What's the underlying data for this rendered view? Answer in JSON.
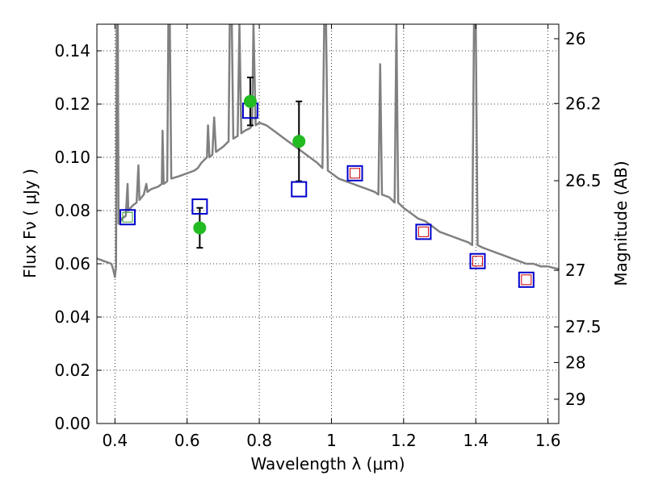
{
  "chart_data": {
    "type": "scatter",
    "xlabel": "Wavelength  λ (μm)",
    "ylabel": "Flux  Fν  ( μJy )",
    "ylabel_right": "Magnitude (AB)",
    "xlim": [
      0.35,
      1.63
    ],
    "ylim": [
      0,
      0.15
    ],
    "grid": true,
    "x_ticks": [
      {
        "value": 0.4,
        "label": "0.4"
      },
      {
        "value": 0.6,
        "label": "0.6"
      },
      {
        "value": 0.8,
        "label": "0.8"
      },
      {
        "value": 1.0,
        "label": "1"
      },
      {
        "value": 1.2,
        "label": "1.2"
      },
      {
        "value": 1.4,
        "label": "1.4"
      },
      {
        "value": 1.6,
        "label": "1.6"
      }
    ],
    "y_ticks": [
      {
        "value": 0.0,
        "label": "0.00"
      },
      {
        "value": 0.02,
        "label": "0.02"
      },
      {
        "value": 0.04,
        "label": "0.04"
      },
      {
        "value": 0.06,
        "label": "0.06"
      },
      {
        "value": 0.08,
        "label": "0.08"
      },
      {
        "value": 0.1,
        "label": "0.10"
      },
      {
        "value": 0.12,
        "label": "0.12"
      },
      {
        "value": 0.14,
        "label": "0.14"
      }
    ],
    "right_ticks": [
      {
        "value": 26.0,
        "label": "26"
      },
      {
        "value": 26.2,
        "label": "26.2"
      },
      {
        "value": 26.5,
        "label": "26.5"
      },
      {
        "value": 27.0,
        "label": "27"
      },
      {
        "value": 27.5,
        "label": "27.5"
      },
      {
        "value": 28.0,
        "label": "28"
      },
      {
        "value": 29.0,
        "label": "29"
      }
    ],
    "colors": {
      "spectrum": "#808080",
      "model_boxes": "#0000cc",
      "inner_boxes": "#cc0000",
      "inner_green": "#2ca02c",
      "observed": "#22bb22",
      "errorbar": "#000000"
    },
    "spectrum": [
      [
        0.35,
        0.062
      ],
      [
        0.37,
        0.061
      ],
      [
        0.39,
        0.06
      ],
      [
        0.395,
        0.058
      ],
      [
        0.4,
        0.055
      ],
      [
        0.403,
        0.059
      ],
      [
        0.405,
        0.15
      ],
      [
        0.408,
        0.15
      ],
      [
        0.41,
        0.075
      ],
      [
        0.42,
        0.077
      ],
      [
        0.43,
        0.078
      ],
      [
        0.435,
        0.09
      ],
      [
        0.437,
        0.08
      ],
      [
        0.45,
        0.082
      ],
      [
        0.46,
        0.083
      ],
      [
        0.465,
        0.097
      ],
      [
        0.468,
        0.084
      ],
      [
        0.48,
        0.086
      ],
      [
        0.487,
        0.09
      ],
      [
        0.49,
        0.087
      ],
      [
        0.5,
        0.088
      ],
      [
        0.52,
        0.089
      ],
      [
        0.53,
        0.09
      ],
      [
        0.532,
        0.11
      ],
      [
        0.535,
        0.09
      ],
      [
        0.545,
        0.091
      ],
      [
        0.548,
        0.15
      ],
      [
        0.552,
        0.15
      ],
      [
        0.556,
        0.092
      ],
      [
        0.58,
        0.093
      ],
      [
        0.6,
        0.094
      ],
      [
        0.62,
        0.095
      ],
      [
        0.63,
        0.096
      ],
      [
        0.64,
        0.098
      ],
      [
        0.655,
        0.1
      ],
      [
        0.658,
        0.112
      ],
      [
        0.662,
        0.1
      ],
      [
        0.67,
        0.101
      ],
      [
        0.675,
        0.115
      ],
      [
        0.68,
        0.102
      ],
      [
        0.7,
        0.104
      ],
      [
        0.715,
        0.106
      ],
      [
        0.718,
        0.15
      ],
      [
        0.724,
        0.15
      ],
      [
        0.728,
        0.107
      ],
      [
        0.74,
        0.108
      ],
      [
        0.745,
        0.15
      ],
      [
        0.75,
        0.109
      ],
      [
        0.76,
        0.11
      ],
      [
        0.775,
        0.111
      ],
      [
        0.78,
        0.112
      ],
      [
        0.784,
        0.15
      ],
      [
        0.79,
        0.112
      ],
      [
        0.8,
        0.113
      ],
      [
        0.82,
        0.112
      ],
      [
        0.84,
        0.11
      ],
      [
        0.86,
        0.108
      ],
      [
        0.88,
        0.106
      ],
      [
        0.9,
        0.104
      ],
      [
        0.92,
        0.102
      ],
      [
        0.94,
        0.1
      ],
      [
        0.96,
        0.098
      ],
      [
        0.975,
        0.096
      ],
      [
        0.98,
        0.15
      ],
      [
        0.985,
        0.15
      ],
      [
        0.99,
        0.095
      ],
      [
        1.0,
        0.094
      ],
      [
        1.02,
        0.092
      ],
      [
        1.04,
        0.091
      ],
      [
        1.06,
        0.09
      ],
      [
        1.08,
        0.089
      ],
      [
        1.1,
        0.088
      ],
      [
        1.12,
        0.087
      ],
      [
        1.13,
        0.086
      ],
      [
        1.135,
        0.135
      ],
      [
        1.14,
        0.086
      ],
      [
        1.16,
        0.085
      ],
      [
        1.175,
        0.083
      ],
      [
        1.18,
        0.15
      ],
      [
        1.185,
        0.083
      ],
      [
        1.2,
        0.081
      ],
      [
        1.22,
        0.079
      ],
      [
        1.24,
        0.077
      ],
      [
        1.26,
        0.076
      ],
      [
        1.28,
        0.074
      ],
      [
        1.3,
        0.072
      ],
      [
        1.32,
        0.071
      ],
      [
        1.34,
        0.07
      ],
      [
        1.36,
        0.069
      ],
      [
        1.38,
        0.068
      ],
      [
        1.39,
        0.067
      ],
      [
        1.395,
        0.15
      ],
      [
        1.4,
        0.15
      ],
      [
        1.405,
        0.067
      ],
      [
        1.42,
        0.066
      ],
      [
        1.44,
        0.065
      ],
      [
        1.46,
        0.064
      ],
      [
        1.48,
        0.063
      ],
      [
        1.5,
        0.062
      ],
      [
        1.52,
        0.061
      ],
      [
        1.54,
        0.06
      ],
      [
        1.56,
        0.06
      ],
      [
        1.58,
        0.059
      ],
      [
        1.6,
        0.059
      ],
      [
        1.63,
        0.058
      ]
    ],
    "model_boxes": [
      {
        "x": 0.435,
        "y": 0.0775,
        "inner": "green"
      },
      {
        "x": 0.635,
        "y": 0.0815
      },
      {
        "x": 0.775,
        "y": 0.1175
      },
      {
        "x": 0.91,
        "y": 0.088
      },
      {
        "x": 1.065,
        "y": 0.094,
        "inner": "red"
      },
      {
        "x": 1.255,
        "y": 0.072,
        "inner": "red"
      },
      {
        "x": 1.405,
        "y": 0.061,
        "inner": "red"
      },
      {
        "x": 1.54,
        "y": 0.054,
        "inner": "red"
      }
    ],
    "observed": [
      {
        "x": 0.635,
        "y": 0.0735,
        "yerr_low": 0.0075,
        "yerr_high": 0.0075
      },
      {
        "x": 0.775,
        "y": 0.121,
        "yerr_low": 0.009,
        "yerr_high": 0.009
      },
      {
        "x": 0.91,
        "y": 0.106,
        "yerr_low": 0.015,
        "yerr_high": 0.015
      }
    ]
  }
}
